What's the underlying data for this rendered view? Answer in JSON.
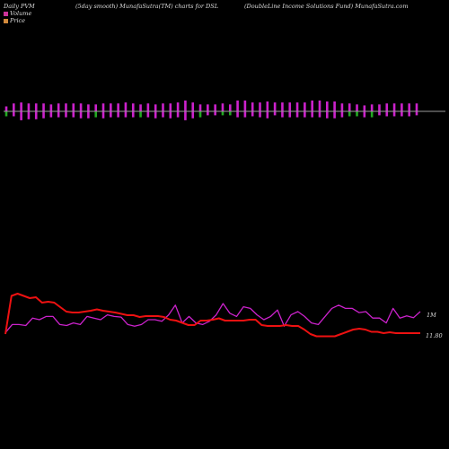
{
  "header": {
    "left": "Daily PVM",
    "middle": "(5day smooth) MunafaSutra(TM) charts for DSL",
    "right": "(DoubleLine Income Solutions Fund) MunafaSutra.com"
  },
  "legend": [
    {
      "label": "Volume",
      "color": "#cc3399"
    },
    {
      "label": "Price",
      "color": "#d28a3c"
    }
  ],
  "chart_data": [
    {
      "type": "bar",
      "subtype": "diverging-volume",
      "title": "",
      "xlabel": "",
      "ylabel": "",
      "ylim": [
        -1,
        1
      ],
      "baseline_color": "#9a9a9a",
      "series": [
        {
          "name": "Volume",
          "color": "#cc22cc",
          "up": [
            0.25,
            0.4,
            0.45,
            0.4,
            0.4,
            0.4,
            0.35,
            0.4,
            0.4,
            0.4,
            0.4,
            0.35,
            0.35,
            0.4,
            0.4,
            0.4,
            0.45,
            0.4,
            0.35,
            0.4,
            0.35,
            0.4,
            0.4,
            0.45,
            0.55,
            0.45,
            0.35,
            0.35,
            0.35,
            0.4,
            0.35,
            0.55,
            0.55,
            0.45,
            0.45,
            0.5,
            0.45,
            0.45,
            0.45,
            0.45,
            0.45,
            0.55,
            0.55,
            0.5,
            0.5,
            0.4,
            0.4,
            0.35,
            0.3,
            0.35,
            0.35,
            0.4,
            0.4,
            0.4,
            0.4,
            0.4
          ],
          "down": [
            0.25,
            0.25,
            0.45,
            0.4,
            0.4,
            0.35,
            0.3,
            0.3,
            0.3,
            0.3,
            0.35,
            0.35,
            0.3,
            0.35,
            0.3,
            0.3,
            0.3,
            0.3,
            0.3,
            0.3,
            0.35,
            0.3,
            0.35,
            0.3,
            0.45,
            0.35,
            0.3,
            0.2,
            0.2,
            0.2,
            0.2,
            0.3,
            0.3,
            0.25,
            0.3,
            0.35,
            0.2,
            0.3,
            0.3,
            0.3,
            0.3,
            0.3,
            0.3,
            0.35,
            0.35,
            0.3,
            0.25,
            0.25,
            0.3,
            0.3,
            0.2,
            0.25,
            0.25,
            0.25,
            0.25,
            0.2
          ],
          "down_colors": [
            "#22aa22",
            "#cc22cc",
            "#cc22cc",
            "#cc22cc",
            "#cc22cc",
            "#cc22cc",
            "#cc22cc",
            "#cc22cc",
            "#cc22cc",
            "#cc22cc",
            "#cc22cc",
            "#cc22cc",
            "#22aa22",
            "#cc22cc",
            "#cc22cc",
            "#cc22cc",
            "#cc22cc",
            "#cc22cc",
            "#22aa22",
            "#cc22cc",
            "#cc22cc",
            "#cc22cc",
            "#cc22cc",
            "#cc22cc",
            "#cc22cc",
            "#cc22cc",
            "#22aa22",
            "#cc22cc",
            "#cc22cc",
            "#22aa22",
            "#22aa22",
            "#cc22cc",
            "#cc22cc",
            "#cc22cc",
            "#cc22cc",
            "#cc22cc",
            "#cc22cc",
            "#cc22cc",
            "#cc22cc",
            "#cc22cc",
            "#cc22cc",
            "#cc22cc",
            "#cc22cc",
            "#cc22cc",
            "#cc22cc",
            "#cc22cc",
            "#22aa22",
            "#22aa22",
            "#cc22cc",
            "#22aa22",
            "#cc22cc",
            "#cc22cc",
            "#cc22cc",
            "#cc22cc",
            "#cc22cc",
            "#cc22cc"
          ]
        }
      ]
    },
    {
      "type": "line",
      "title": "",
      "xlabel": "",
      "ylabel": "",
      "series": [
        {
          "name": "Volume",
          "color": "#cc22cc",
          "end_label": "1M",
          "values": [
            0.1,
            0.35,
            0.35,
            0.32,
            0.55,
            0.5,
            0.6,
            0.6,
            0.35,
            0.32,
            0.4,
            0.35,
            0.6,
            0.55,
            0.5,
            0.65,
            0.6,
            0.58,
            0.35,
            0.3,
            0.35,
            0.5,
            0.5,
            0.45,
            0.65,
            0.95,
            0.4,
            0.6,
            0.4,
            0.35,
            0.45,
            0.65,
            1.0,
            0.7,
            0.6,
            0.9,
            0.85,
            0.65,
            0.5,
            0.6,
            0.8,
            0.3,
            0.65,
            0.75,
            0.6,
            0.4,
            0.35,
            0.6,
            0.85,
            0.95,
            0.85,
            0.85,
            0.72,
            0.75,
            0.55,
            0.55,
            0.4,
            0.85,
            0.55,
            0.62,
            0.56,
            0.75
          ]
        },
        {
          "name": "Price",
          "color": "#ee1111",
          "end_label": "11.80",
          "values": [
            0.1,
            0.95,
            1.0,
            0.95,
            0.9,
            0.92,
            0.8,
            0.82,
            0.8,
            0.7,
            0.6,
            0.58,
            0.58,
            0.6,
            0.62,
            0.65,
            0.62,
            0.6,
            0.58,
            0.55,
            0.52,
            0.52,
            0.48,
            0.5,
            0.5,
            0.5,
            0.48,
            0.42,
            0.4,
            0.35,
            0.3,
            0.3,
            0.4,
            0.4,
            0.42,
            0.45,
            0.4,
            0.4,
            0.4,
            0.4,
            0.42,
            0.42,
            0.3,
            0.28,
            0.28,
            0.28,
            0.3,
            0.28,
            0.28,
            0.2,
            0.1,
            0.05,
            0.05,
            0.05,
            0.05,
            0.1,
            0.15,
            0.2,
            0.22,
            0.2,
            0.15,
            0.15,
            0.12,
            0.14,
            0.12,
            0.12,
            0.12,
            0.12,
            0.12
          ]
        }
      ]
    }
  ]
}
